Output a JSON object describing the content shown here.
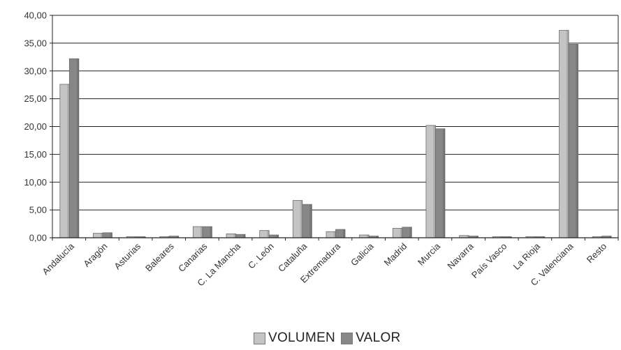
{
  "chart_data": {
    "type": "bar",
    "categories": [
      "Andalucía",
      "Aragón",
      "Asturias",
      "Baleares",
      "Canarias",
      "C. La Mancha",
      "C. León",
      "Cataluña",
      "Extremadura",
      "Galicia",
      "Madrid",
      "Murcia",
      "Navarra",
      "País Vasco",
      "La Rioja",
      "C. Valenciana",
      "Resto"
    ],
    "series": [
      {
        "name": "VOLUMEN",
        "color": "#c4c4c4",
        "values": [
          27.6,
          0.8,
          0.2,
          0.2,
          2.0,
          0.7,
          1.3,
          6.7,
          1.1,
          0.5,
          1.7,
          20.2,
          0.4,
          0.2,
          0.2,
          37.3,
          0.2
        ]
      },
      {
        "name": "VALOR",
        "color": "#878787",
        "values": [
          32.2,
          0.9,
          0.1,
          0.3,
          2.0,
          0.6,
          0.5,
          6.0,
          1.5,
          0.3,
          1.9,
          19.6,
          0.3,
          0.1,
          0.1,
          34.8,
          0.3
        ]
      }
    ],
    "ylim": [
      0,
      40
    ],
    "yticks": [
      "0,00",
      "5,00",
      "10,00",
      "15,00",
      "20,00",
      "25,00",
      "30,00",
      "35,00",
      "40,00"
    ],
    "grid": true,
    "legend": "bottom"
  }
}
